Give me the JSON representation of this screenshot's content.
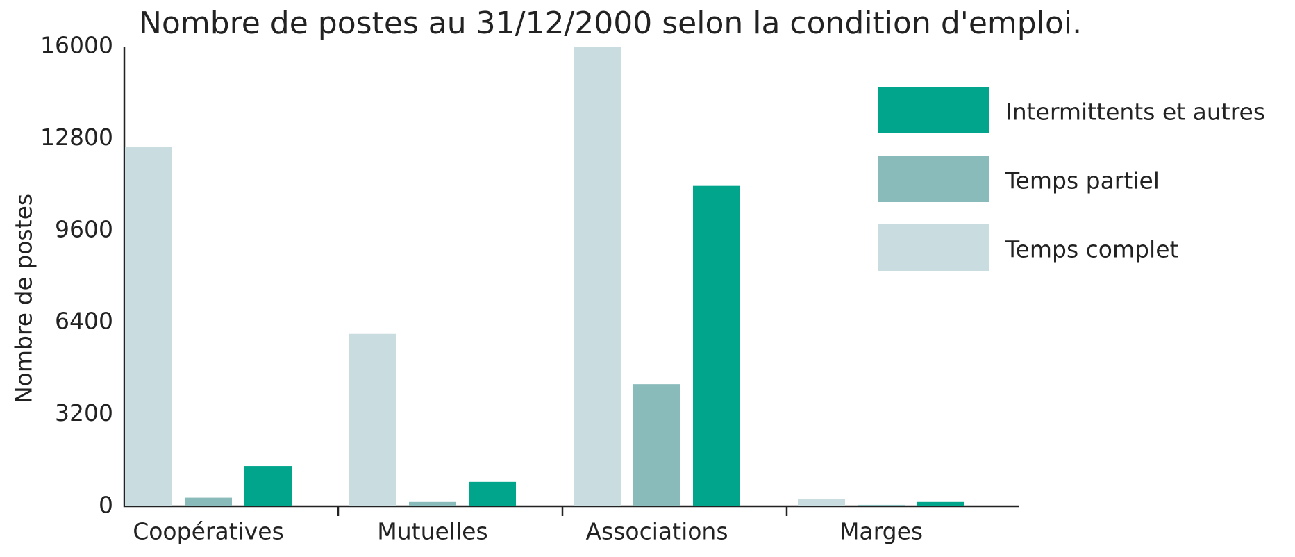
{
  "chart_data": {
    "type": "bar",
    "title": "Nombre de postes au 31/12/2000 selon la condition d'emploi.",
    "ylabel": "Nombre de postes",
    "categories": [
      "Coopératives",
      "Mutuelles",
      "Associations",
      "Marges"
    ],
    "series": [
      {
        "name": "Temps complet",
        "color": "#c9dde0",
        "values": [
          12500,
          6000,
          16000,
          250
        ]
      },
      {
        "name": "Temps partiel",
        "color": "#8abbbb",
        "values": [
          300,
          150,
          4250,
          50
        ]
      },
      {
        "name": "Intermittents et autres",
        "color": "#00a58c",
        "values": [
          1400,
          850,
          11150,
          150
        ]
      }
    ],
    "ylim": [
      0,
      16000
    ],
    "yticks": [
      0,
      3200,
      6400,
      9600,
      12800,
      16000
    ],
    "grid": false,
    "legend": "upper right"
  }
}
